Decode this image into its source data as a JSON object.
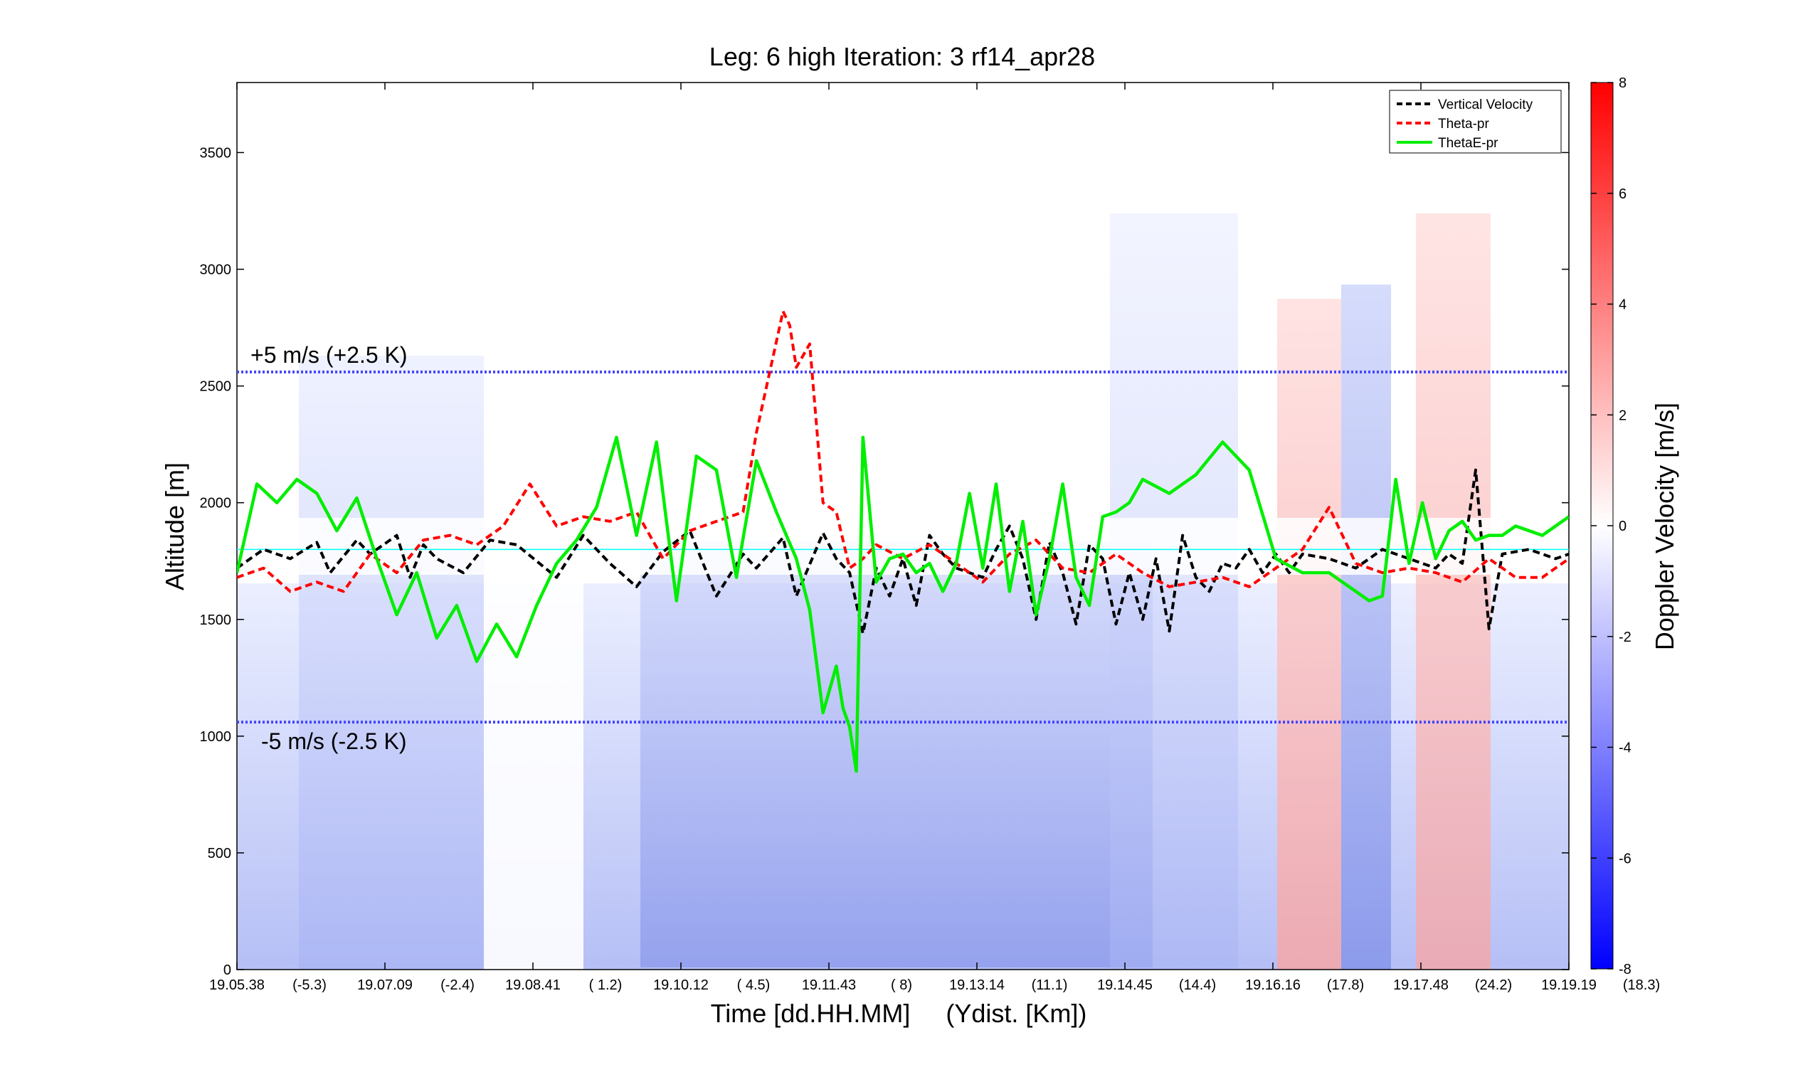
{
  "chart_data": {
    "type": "line",
    "title": "Leg: 6 high Iteration: 3  rf14_apr28",
    "xlabel": "Time [dd.HH.MM]     (Ydist. [Km])",
    "ylabel": "Altitude [m]",
    "colorbar_label": "Doppler Velocity [m/s]",
    "colorbar_ticks": [
      8,
      6,
      4,
      2,
      0,
      -2,
      -4,
      -6,
      -8
    ],
    "colorbar_range": [
      -8,
      8
    ],
    "colors": {
      "positive": "#ff0000",
      "negative": "#0000ff",
      "zero": "#ffffff",
      "reference": "#00ffff",
      "level": "#4444ff"
    },
    "ylim": [
      0,
      3800
    ],
    "yticks": [
      0,
      500,
      1000,
      1500,
      2000,
      2500,
      3000,
      3500
    ],
    "xticks": [
      {
        "time": "19.05.38",
        "dist": "(-5.3)"
      },
      {
        "time": "19.07.09",
        "dist": "(-2.4)"
      },
      {
        "time": "19.08.41",
        "dist": "( 1.2)"
      },
      {
        "time": "19.10.12",
        "dist": "( 4.5)"
      },
      {
        "time": "19.11.43",
        "dist": "(  8)"
      },
      {
        "time": "19.13.14",
        "dist": "(11.1)"
      },
      {
        "time": "19.14.45",
        "dist": "(14.4)"
      },
      {
        "time": "19.16.16",
        "dist": "(17.8)"
      },
      {
        "time": "19.17.48",
        "dist": "(24.2)"
      },
      {
        "time": "19.19.19",
        "dist": "(18.3)"
      }
    ],
    "reference_levels": [
      {
        "altitude": 2560,
        "label": "+5 m/s (+2.5 K)"
      },
      {
        "altitude": 1060,
        "label": "-5 m/s (-2.5 K)"
      }
    ],
    "center_altitude": 1800,
    "legend_position": "top-right",
    "series": [
      {
        "name": "Vertical Velocity",
        "color": "#000000",
        "dash": true,
        "x": [
          0.0,
          0.02,
          0.04,
          0.06,
          0.07,
          0.09,
          0.1,
          0.12,
          0.13,
          0.14,
          0.15,
          0.17,
          0.19,
          0.21,
          0.24,
          0.26,
          0.28,
          0.3,
          0.32,
          0.34,
          0.36,
          0.38,
          0.39,
          0.41,
          0.42,
          0.44,
          0.45,
          0.46,
          0.47,
          0.48,
          0.49,
          0.5,
          0.51,
          0.52,
          0.53,
          0.54,
          0.56,
          0.57,
          0.58,
          0.59,
          0.6,
          0.61,
          0.62,
          0.63,
          0.64,
          0.65,
          0.66,
          0.67,
          0.68,
          0.69,
          0.7,
          0.71,
          0.72,
          0.73,
          0.74,
          0.75,
          0.76,
          0.77,
          0.78,
          0.79,
          0.8,
          0.82,
          0.84,
          0.86,
          0.88,
          0.9,
          0.91,
          0.92,
          0.93,
          0.94,
          0.95,
          0.97,
          0.99,
          1.0
        ],
        "y": [
          1720,
          1800,
          1760,
          1830,
          1700,
          1840,
          1780,
          1860,
          1680,
          1820,
          1760,
          1700,
          1840,
          1820,
          1680,
          1860,
          1740,
          1640,
          1790,
          1880,
          1600,
          1780,
          1720,
          1850,
          1600,
          1870,
          1760,
          1700,
          1440,
          1720,
          1600,
          1760,
          1560,
          1860,
          1780,
          1720,
          1680,
          1800,
          1900,
          1760,
          1500,
          1830,
          1700,
          1480,
          1820,
          1760,
          1480,
          1700,
          1500,
          1760,
          1450,
          1860,
          1680,
          1620,
          1740,
          1720,
          1800,
          1700,
          1780,
          1700,
          1780,
          1760,
          1720,
          1800,
          1760,
          1720,
          1780,
          1740,
          2140,
          1460,
          1780,
          1800,
          1760,
          1780
        ]
      },
      {
        "name": "Theta-pr",
        "color": "#ff0000",
        "dash": true,
        "x": [
          0.0,
          0.02,
          0.04,
          0.06,
          0.08,
          0.1,
          0.12,
          0.14,
          0.16,
          0.18,
          0.2,
          0.22,
          0.24,
          0.26,
          0.28,
          0.3,
          0.32,
          0.34,
          0.36,
          0.38,
          0.39,
          0.4,
          0.41,
          0.415,
          0.42,
          0.43,
          0.44,
          0.45,
          0.46,
          0.47,
          0.48,
          0.5,
          0.52,
          0.54,
          0.56,
          0.58,
          0.6,
          0.62,
          0.64,
          0.66,
          0.68,
          0.7,
          0.72,
          0.74,
          0.76,
          0.78,
          0.8,
          0.82,
          0.84,
          0.86,
          0.88,
          0.9,
          0.92,
          0.94,
          0.96,
          0.98,
          1.0
        ],
        "y": [
          1680,
          1720,
          1620,
          1660,
          1620,
          1780,
          1700,
          1840,
          1860,
          1820,
          1900,
          2080,
          1900,
          1940,
          1920,
          1960,
          1760,
          1880,
          1920,
          1960,
          2300,
          2560,
          2820,
          2760,
          2580,
          2680,
          2000,
          1960,
          1720,
          1760,
          1820,
          1760,
          1820,
          1740,
          1660,
          1780,
          1840,
          1720,
          1700,
          1780,
          1700,
          1640,
          1660,
          1680,
          1640,
          1720,
          1800,
          1980,
          1740,
          1700,
          1720,
          1700,
          1660,
          1760,
          1680,
          1680,
          1760
        ]
      },
      {
        "name": "ThetaE-pr",
        "color": "#00ee00",
        "dash": false,
        "x": [
          0.0,
          0.015,
          0.03,
          0.045,
          0.06,
          0.075,
          0.09,
          0.105,
          0.12,
          0.135,
          0.15,
          0.165,
          0.18,
          0.195,
          0.21,
          0.225,
          0.24,
          0.255,
          0.27,
          0.285,
          0.3,
          0.315,
          0.33,
          0.345,
          0.36,
          0.375,
          0.39,
          0.405,
          0.42,
          0.43,
          0.44,
          0.45,
          0.455,
          0.46,
          0.465,
          0.47,
          0.48,
          0.49,
          0.5,
          0.51,
          0.52,
          0.53,
          0.54,
          0.55,
          0.56,
          0.57,
          0.58,
          0.59,
          0.6,
          0.61,
          0.62,
          0.63,
          0.64,
          0.65,
          0.66,
          0.67,
          0.68,
          0.7,
          0.72,
          0.74,
          0.76,
          0.78,
          0.8,
          0.82,
          0.84,
          0.85,
          0.86,
          0.87,
          0.88,
          0.89,
          0.9,
          0.91,
          0.92,
          0.93,
          0.94,
          0.95,
          0.96,
          0.98,
          1.0
        ],
        "y": [
          1700,
          2080,
          2000,
          2100,
          2040,
          1880,
          2020,
          1760,
          1520,
          1700,
          1420,
          1560,
          1320,
          1480,
          1340,
          1560,
          1740,
          1840,
          1980,
          2280,
          1860,
          2260,
          1580,
          2200,
          2140,
          1680,
          2180,
          1960,
          1760,
          1540,
          1100,
          1300,
          1120,
          1040,
          850,
          2280,
          1660,
          1760,
          1780,
          1700,
          1740,
          1620,
          1740,
          2040,
          1720,
          2080,
          1620,
          1920,
          1520,
          1760,
          2080,
          1680,
          1560,
          1940,
          1960,
          2000,
          2100,
          2040,
          2120,
          2260,
          2140,
          1760,
          1700,
          1700,
          1620,
          1580,
          1600,
          2100,
          1740,
          2000,
          1760,
          1880,
          1920,
          1840,
          1860,
          1860,
          1900,
          1860,
          1940
        ]
      }
    ]
  }
}
